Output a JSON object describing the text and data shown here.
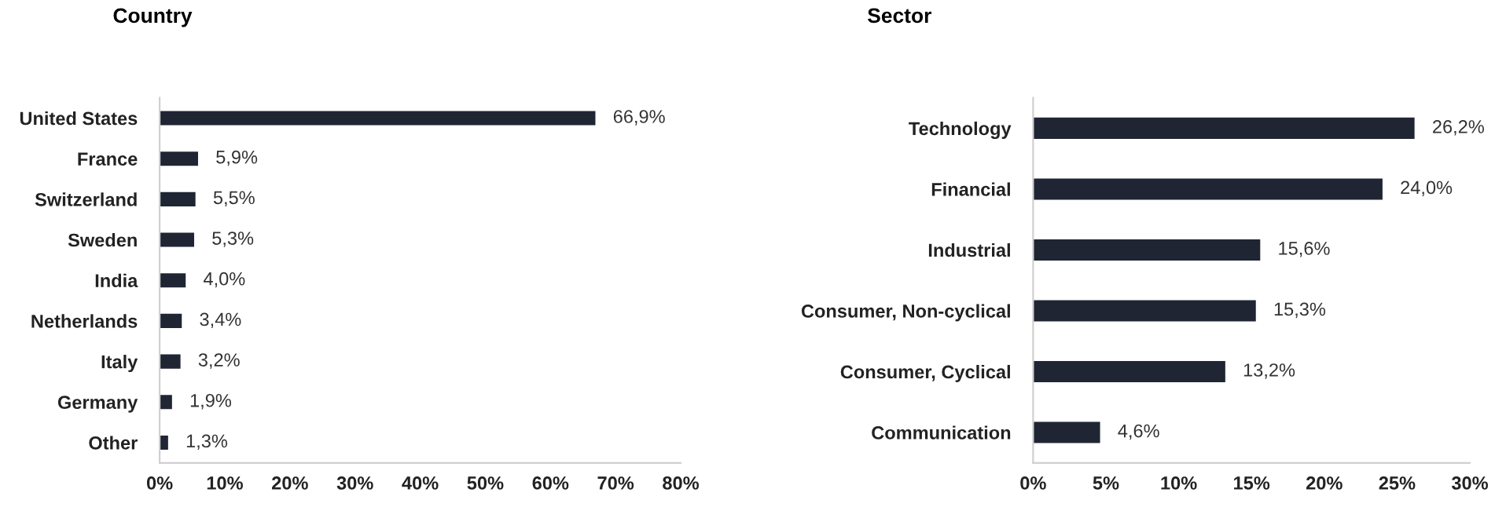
{
  "chart_data": [
    {
      "type": "bar",
      "orientation": "horizontal",
      "title": "Country",
      "categories": [
        "United States",
        "France",
        "Switzerland",
        "Sweden",
        "India",
        "Netherlands",
        "Italy",
        "Germany",
        "Other"
      ],
      "values": [
        66.9,
        5.9,
        5.5,
        5.3,
        4.0,
        3.4,
        3.2,
        1.9,
        1.3
      ],
      "value_labels": [
        "66,9%",
        "5,9%",
        "5,5%",
        "5,3%",
        "4,0%",
        "3,4%",
        "3,2%",
        "1,9%",
        "1,3%"
      ],
      "color": "#1f2533",
      "xlim": [
        0,
        80
      ],
      "xticks": [
        {
          "value": 0,
          "label": "0%"
        },
        {
          "value": 10,
          "label": "10%"
        },
        {
          "value": 20,
          "label": "20%"
        },
        {
          "value": 30,
          "label": "30%"
        },
        {
          "value": 40,
          "label": "40%"
        },
        {
          "value": 50,
          "label": "50%"
        },
        {
          "value": 60,
          "label": "60%"
        },
        {
          "value": 70,
          "label": "70%"
        },
        {
          "value": 80,
          "label": "80%"
        }
      ],
      "grid": false,
      "legend": false
    },
    {
      "type": "bar",
      "orientation": "horizontal",
      "title": "Sector",
      "categories": [
        "Technology",
        "Financial",
        "Industrial",
        "Consumer, Non-cyclical",
        "Consumer, Cyclical",
        "Communication"
      ],
      "values": [
        26.2,
        24.0,
        15.6,
        15.3,
        13.2,
        4.6
      ],
      "value_labels": [
        "26,2%",
        "24,0%",
        "15,6%",
        "15,3%",
        "13,2%",
        "4,6%"
      ],
      "color": "#1f2533",
      "xlim": [
        0,
        30
      ],
      "xticks": [
        {
          "value": 0,
          "label": "0%"
        },
        {
          "value": 5,
          "label": "5%"
        },
        {
          "value": 10,
          "label": "10%"
        },
        {
          "value": 15,
          "label": "15%"
        },
        {
          "value": 20,
          "label": "20%"
        },
        {
          "value": 25,
          "label": "25%"
        },
        {
          "value": 30,
          "label": "30%"
        }
      ],
      "grid": false,
      "legend": false
    }
  ]
}
